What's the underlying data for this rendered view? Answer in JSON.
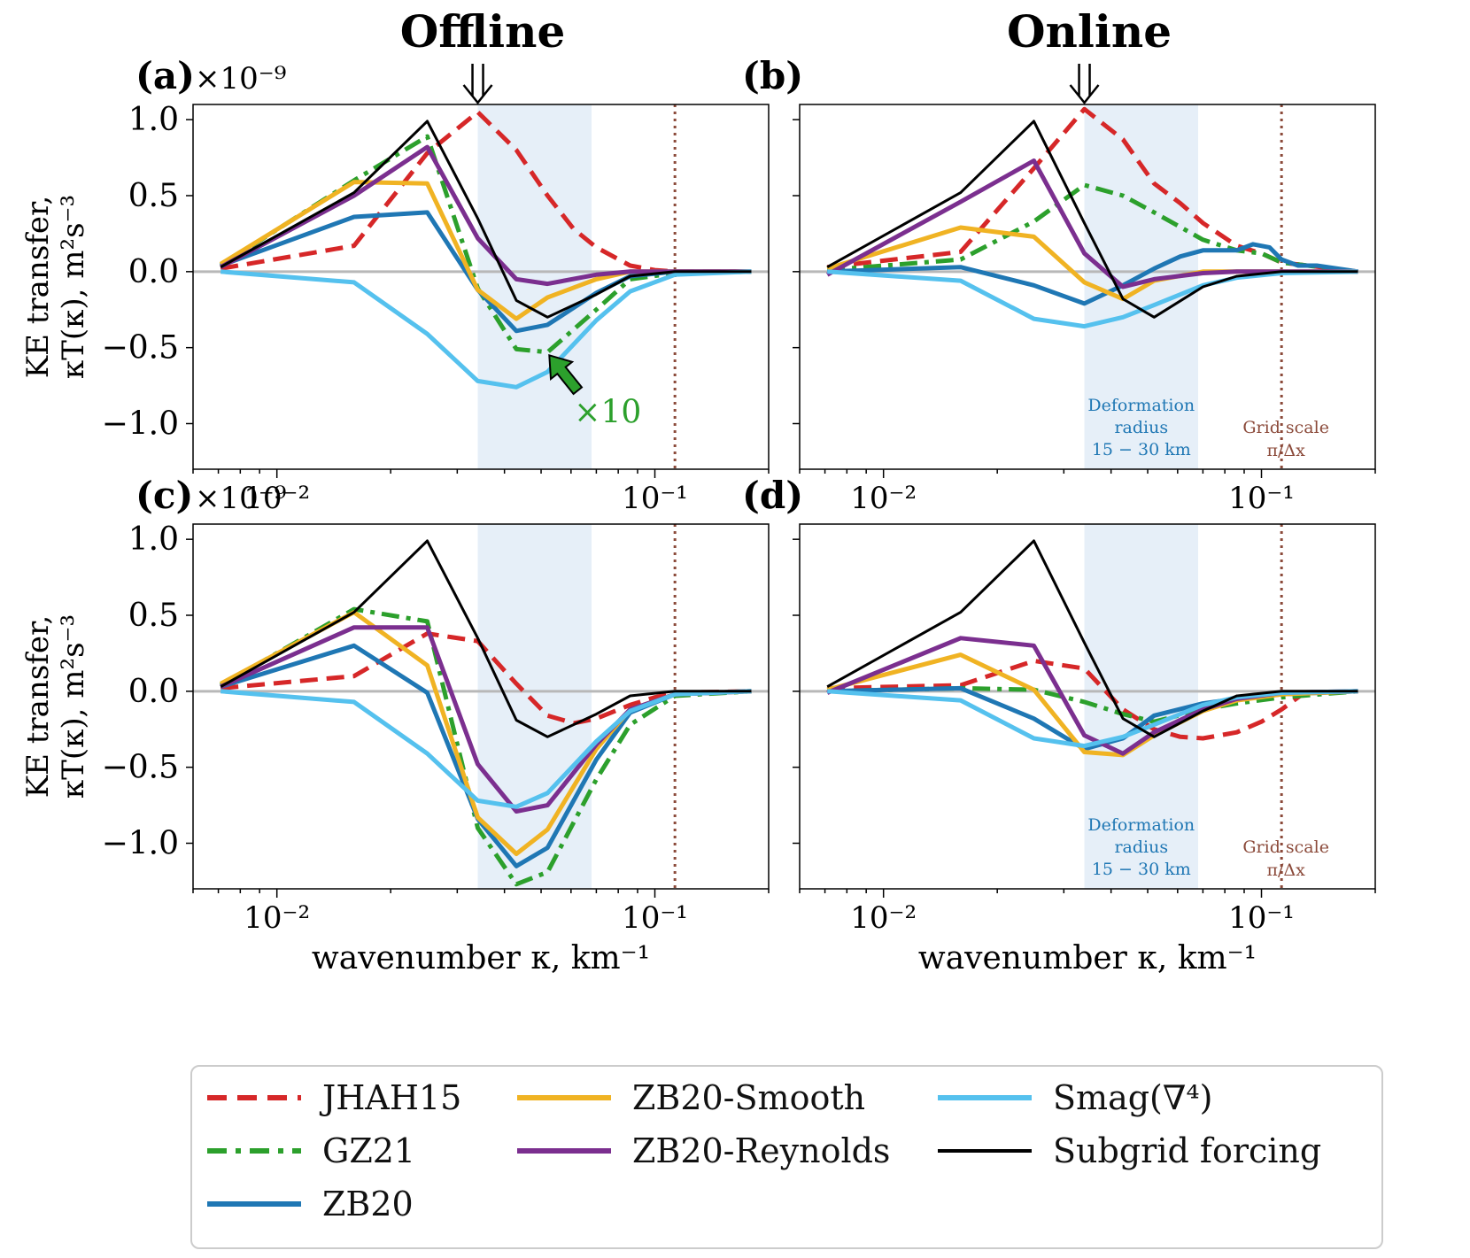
{
  "figure": {
    "column_titles": [
      "Offline",
      "Online"
    ],
    "ylabel_line1": "KE transfer,",
    "ylabel_line2": "κT(κ), m²s⁻³",
    "xlabel": "wavenumber κ, km⁻¹",
    "offset_text": "×10⁻⁹",
    "annotation_x10": "×10",
    "deformation_label": [
      "Deformation",
      "radius",
      "15 − 30 km"
    ],
    "grid_label": [
      "Grid scale",
      "π/Δx"
    ],
    "x_ticks": [
      "10⁻²",
      "10⁻¹"
    ],
    "y_ticks": [
      "1.0",
      "0.5",
      "0.0",
      "−0.5",
      "−1.0"
    ]
  },
  "colors": {
    "JHAH15": "#d62728",
    "GZ21": "#2ca02c",
    "ZB20": "#1f77b4",
    "ZB20-Smooth": "#f0b323",
    "ZB20-Reynolds": "#7b2f8f",
    "Smag": "#55c1ee",
    "Subgrid": "#000000",
    "shade": "#e6eff8",
    "grid": "#8b4a3a",
    "deformation_text": "#1f77b4"
  },
  "legend": [
    {
      "key": "JHAH15",
      "label": "JHAH15",
      "style": "dashed"
    },
    {
      "key": "GZ21",
      "label": "GZ21",
      "style": "dashdot"
    },
    {
      "key": "ZB20",
      "label": "ZB20",
      "style": "solid"
    },
    {
      "key": "ZB20-Smooth",
      "label": "ZB20-Smooth",
      "style": "solid"
    },
    {
      "key": "ZB20-Reynolds",
      "label": "ZB20-Reynolds",
      "style": "solid"
    },
    {
      "key": "Smag",
      "label": "Smag(∇⁴)",
      "style": "solid"
    },
    {
      "key": "Subgrid",
      "label": "Subgrid forcing",
      "style": "thin"
    }
  ],
  "chart_data": [
    {
      "panel": "(a)",
      "type": "line",
      "column": "Offline",
      "xscale": "log",
      "xlim": [
        0.006,
        0.2
      ],
      "ylim": [
        -1.3,
        1.1
      ],
      "scale": "1e-9",
      "shaded_band": [
        0.034,
        0.068
      ],
      "grid_scale_x": 0.113,
      "arrow_x": 0.034,
      "show_deformation_label": false,
      "show_x10": true,
      "series": [
        {
          "name": "JHAH15",
          "x": [
            0.0071,
            0.016,
            0.025,
            0.034,
            0.043,
            0.052,
            0.061,
            0.07,
            0.086,
            0.1,
            0.113,
            0.18
          ],
          "y": [
            0.02,
            0.17,
            0.78,
            1.05,
            0.8,
            0.5,
            0.28,
            0.16,
            0.04,
            0.01,
            0.0,
            0.0
          ]
        },
        {
          "name": "GZ21",
          "x": [
            0.0071,
            0.016,
            0.025,
            0.034,
            0.043,
            0.052,
            0.07,
            0.086,
            0.113,
            0.18
          ],
          "y": [
            0.04,
            0.6,
            0.89,
            -0.11,
            -0.51,
            -0.53,
            -0.25,
            -0.05,
            -0.01,
            0.0
          ]
        },
        {
          "name": "ZB20",
          "x": [
            0.0071,
            0.016,
            0.025,
            0.034,
            0.043,
            0.052,
            0.07,
            0.086,
            0.113,
            0.18
          ],
          "y": [
            0.04,
            0.36,
            0.39,
            -0.12,
            -0.39,
            -0.35,
            -0.14,
            -0.03,
            0.0,
            0.0
          ]
        },
        {
          "name": "ZB20-Smooth",
          "x": [
            0.0071,
            0.016,
            0.025,
            0.034,
            0.043,
            0.052,
            0.07,
            0.086,
            0.113,
            0.18
          ],
          "y": [
            0.05,
            0.59,
            0.58,
            -0.12,
            -0.31,
            -0.17,
            -0.05,
            0.0,
            0.0,
            0.0
          ]
        },
        {
          "name": "ZB20-Reynolds",
          "x": [
            0.0071,
            0.016,
            0.025,
            0.034,
            0.043,
            0.052,
            0.07,
            0.086,
            0.113,
            0.18
          ],
          "y": [
            0.03,
            0.5,
            0.82,
            0.22,
            -0.05,
            -0.08,
            -0.02,
            0.0,
            0.0,
            0.0
          ]
        },
        {
          "name": "Smag",
          "x": [
            0.0071,
            0.016,
            0.025,
            0.034,
            0.043,
            0.052,
            0.07,
            0.086,
            0.113,
            0.18
          ],
          "y": [
            0.0,
            -0.07,
            -0.41,
            -0.72,
            -0.76,
            -0.66,
            -0.32,
            -0.13,
            -0.02,
            0.0
          ]
        },
        {
          "name": "Subgrid",
          "x": [
            0.0071,
            0.016,
            0.025,
            0.034,
            0.043,
            0.052,
            0.07,
            0.086,
            0.113,
            0.18
          ],
          "y": [
            0.03,
            0.52,
            0.99,
            0.35,
            -0.19,
            -0.3,
            -0.15,
            -0.03,
            0.0,
            0.0
          ]
        }
      ]
    },
    {
      "panel": "(b)",
      "type": "line",
      "column": "Online",
      "xscale": "log",
      "xlim": [
        0.006,
        0.2
      ],
      "ylim": [
        -1.3,
        1.1
      ],
      "scale": "1e-9",
      "shaded_band": [
        0.034,
        0.068
      ],
      "grid_scale_x": 0.113,
      "arrow_x": 0.034,
      "show_deformation_label": true,
      "show_x10": false,
      "series": [
        {
          "name": "JHAH15",
          "x": [
            0.0071,
            0.016,
            0.025,
            0.034,
            0.043,
            0.052,
            0.061,
            0.07,
            0.086,
            0.1,
            0.113,
            0.18
          ],
          "y": [
            0.03,
            0.13,
            0.68,
            1.07,
            0.87,
            0.58,
            0.45,
            0.32,
            0.17,
            0.12,
            0.06,
            0.0
          ]
        },
        {
          "name": "GZ21",
          "x": [
            0.0071,
            0.016,
            0.025,
            0.034,
            0.043,
            0.052,
            0.07,
            0.086,
            0.1,
            0.113,
            0.18
          ],
          "y": [
            0.01,
            0.08,
            0.33,
            0.57,
            0.5,
            0.39,
            0.21,
            0.14,
            0.12,
            0.06,
            0.0
          ]
        },
        {
          "name": "ZB20",
          "x": [
            0.0071,
            0.016,
            0.025,
            0.034,
            0.043,
            0.052,
            0.061,
            0.07,
            0.086,
            0.095,
            0.105,
            0.113,
            0.125,
            0.14,
            0.18
          ],
          "y": [
            0.0,
            0.03,
            -0.09,
            -0.21,
            -0.09,
            0.02,
            0.1,
            0.14,
            0.14,
            0.18,
            0.16,
            0.08,
            0.04,
            0.04,
            0.0
          ]
        },
        {
          "name": "ZB20-Smooth",
          "x": [
            0.0071,
            0.016,
            0.025,
            0.034,
            0.043,
            0.052,
            0.07,
            0.086,
            0.113,
            0.18
          ],
          "y": [
            0.02,
            0.29,
            0.23,
            -0.07,
            -0.18,
            -0.06,
            0.0,
            0.0,
            0.0,
            0.0
          ]
        },
        {
          "name": "ZB20-Reynolds",
          "x": [
            0.0071,
            0.016,
            0.025,
            0.034,
            0.043,
            0.052,
            0.07,
            0.086,
            0.113,
            0.18
          ],
          "y": [
            -0.02,
            0.46,
            0.73,
            0.12,
            -0.1,
            -0.05,
            -0.01,
            0.0,
            0.0,
            0.0
          ]
        },
        {
          "name": "Smag",
          "x": [
            0.0071,
            0.016,
            0.025,
            0.034,
            0.043,
            0.052,
            0.07,
            0.086,
            0.113,
            0.18
          ],
          "y": [
            0.0,
            -0.06,
            -0.31,
            -0.36,
            -0.3,
            -0.22,
            -0.09,
            -0.04,
            -0.01,
            0.0
          ]
        },
        {
          "name": "Subgrid",
          "x": [
            0.0071,
            0.016,
            0.025,
            0.034,
            0.043,
            0.052,
            0.07,
            0.086,
            0.113,
            0.18
          ],
          "y": [
            0.03,
            0.52,
            0.99,
            0.32,
            -0.18,
            -0.3,
            -0.1,
            -0.03,
            0.0,
            0.0
          ]
        }
      ]
    },
    {
      "panel": "(c)",
      "type": "line",
      "column": "Offline",
      "xscale": "log",
      "xlim": [
        0.006,
        0.2
      ],
      "ylim": [
        -1.3,
        1.1
      ],
      "scale": "1e-9",
      "shaded_band": [
        0.034,
        0.068
      ],
      "grid_scale_x": 0.113,
      "arrow_x": null,
      "show_deformation_label": false,
      "show_x10": false,
      "series": [
        {
          "name": "JHAH15",
          "x": [
            0.0071,
            0.016,
            0.025,
            0.034,
            0.043,
            0.052,
            0.061,
            0.07,
            0.086,
            0.1,
            0.113,
            0.18
          ],
          "y": [
            0.02,
            0.1,
            0.38,
            0.33,
            0.05,
            -0.16,
            -0.21,
            -0.18,
            -0.09,
            -0.04,
            -0.01,
            0.0
          ]
        },
        {
          "name": "GZ21",
          "x": [
            0.0071,
            0.016,
            0.025,
            0.034,
            0.043,
            0.052,
            0.07,
            0.086,
            0.113,
            0.18
          ],
          "y": [
            0.04,
            0.54,
            0.46,
            -0.9,
            -1.27,
            -1.19,
            -0.58,
            -0.22,
            -0.03,
            0.0
          ]
        },
        {
          "name": "ZB20",
          "x": [
            0.0071,
            0.016,
            0.025,
            0.034,
            0.043,
            0.052,
            0.07,
            0.086,
            0.113,
            0.18
          ],
          "y": [
            0.03,
            0.3,
            -0.01,
            -0.84,
            -1.15,
            -1.03,
            -0.45,
            -0.14,
            -0.02,
            0.0
          ]
        },
        {
          "name": "ZB20-Smooth",
          "x": [
            0.0071,
            0.016,
            0.025,
            0.034,
            0.043,
            0.052,
            0.07,
            0.086,
            0.113,
            0.18
          ],
          "y": [
            0.05,
            0.52,
            0.17,
            -0.83,
            -1.07,
            -0.91,
            -0.38,
            -0.12,
            -0.02,
            0.0
          ]
        },
        {
          "name": "ZB20-Reynolds",
          "x": [
            0.0071,
            0.016,
            0.025,
            0.034,
            0.043,
            0.052,
            0.07,
            0.086,
            0.113,
            0.18
          ],
          "y": [
            0.03,
            0.42,
            0.42,
            -0.48,
            -0.79,
            -0.75,
            -0.35,
            -0.12,
            -0.02,
            0.0
          ]
        },
        {
          "name": "Smag",
          "x": [
            0.0071,
            0.016,
            0.025,
            0.034,
            0.043,
            0.052,
            0.07,
            0.086,
            0.113,
            0.18
          ],
          "y": [
            0.0,
            -0.07,
            -0.41,
            -0.72,
            -0.76,
            -0.67,
            -0.33,
            -0.13,
            -0.02,
            0.0
          ]
        },
        {
          "name": "Subgrid",
          "x": [
            0.0071,
            0.016,
            0.025,
            0.034,
            0.043,
            0.052,
            0.07,
            0.086,
            0.113,
            0.18
          ],
          "y": [
            0.03,
            0.52,
            0.99,
            0.35,
            -0.19,
            -0.3,
            -0.15,
            -0.03,
            0.0,
            0.0
          ]
        }
      ]
    },
    {
      "panel": "(d)",
      "type": "line",
      "column": "Online",
      "xscale": "log",
      "xlim": [
        0.006,
        0.2
      ],
      "ylim": [
        -1.3,
        1.1
      ],
      "scale": "1e-9",
      "shaded_band": [
        0.034,
        0.068
      ],
      "grid_scale_x": 0.113,
      "arrow_x": null,
      "show_deformation_label": true,
      "show_x10": false,
      "series": [
        {
          "name": "JHAH15",
          "x": [
            0.0071,
            0.016,
            0.025,
            0.034,
            0.043,
            0.052,
            0.061,
            0.07,
            0.086,
            0.1,
            0.113,
            0.13,
            0.18
          ],
          "y": [
            0.02,
            0.04,
            0.2,
            0.15,
            -0.12,
            -0.25,
            -0.3,
            -0.31,
            -0.27,
            -0.2,
            -0.12,
            -0.01,
            0.0
          ]
        },
        {
          "name": "GZ21",
          "x": [
            0.0071,
            0.016,
            0.025,
            0.034,
            0.043,
            0.052,
            0.07,
            0.086,
            0.113,
            0.18
          ],
          "y": [
            0.0,
            0.02,
            0.01,
            -0.07,
            -0.15,
            -0.2,
            -0.12,
            -0.08,
            -0.04,
            0.0
          ]
        },
        {
          "name": "ZB20",
          "x": [
            0.0071,
            0.016,
            0.025,
            0.034,
            0.043,
            0.052,
            0.07,
            0.086,
            0.113,
            0.18
          ],
          "y": [
            0.0,
            0.02,
            -0.18,
            -0.38,
            -0.31,
            -0.16,
            -0.08,
            -0.05,
            -0.02,
            0.0
          ]
        },
        {
          "name": "ZB20-Smooth",
          "x": [
            0.0071,
            0.016,
            0.025,
            0.034,
            0.043,
            0.052,
            0.07,
            0.086,
            0.113,
            0.18
          ],
          "y": [
            0.01,
            0.24,
            0.01,
            -0.4,
            -0.42,
            -0.29,
            -0.13,
            -0.06,
            -0.02,
            0.0
          ]
        },
        {
          "name": "ZB20-Reynolds",
          "x": [
            0.0071,
            0.016,
            0.025,
            0.034,
            0.043,
            0.052,
            0.07,
            0.086,
            0.113,
            0.18
          ],
          "y": [
            -0.01,
            0.35,
            0.3,
            -0.29,
            -0.41,
            -0.27,
            -0.12,
            -0.05,
            -0.01,
            0.0
          ]
        },
        {
          "name": "Smag",
          "x": [
            0.0071,
            0.016,
            0.025,
            0.034,
            0.043,
            0.052,
            0.07,
            0.086,
            0.113,
            0.18
          ],
          "y": [
            0.0,
            -0.06,
            -0.31,
            -0.36,
            -0.3,
            -0.22,
            -0.09,
            -0.04,
            -0.01,
            0.0
          ]
        },
        {
          "name": "Subgrid",
          "x": [
            0.0071,
            0.016,
            0.025,
            0.034,
            0.043,
            0.052,
            0.07,
            0.086,
            0.113,
            0.18
          ],
          "y": [
            0.03,
            0.52,
            0.99,
            0.32,
            -0.18,
            -0.3,
            -0.13,
            -0.03,
            0.0,
            0.0
          ]
        }
      ]
    }
  ]
}
